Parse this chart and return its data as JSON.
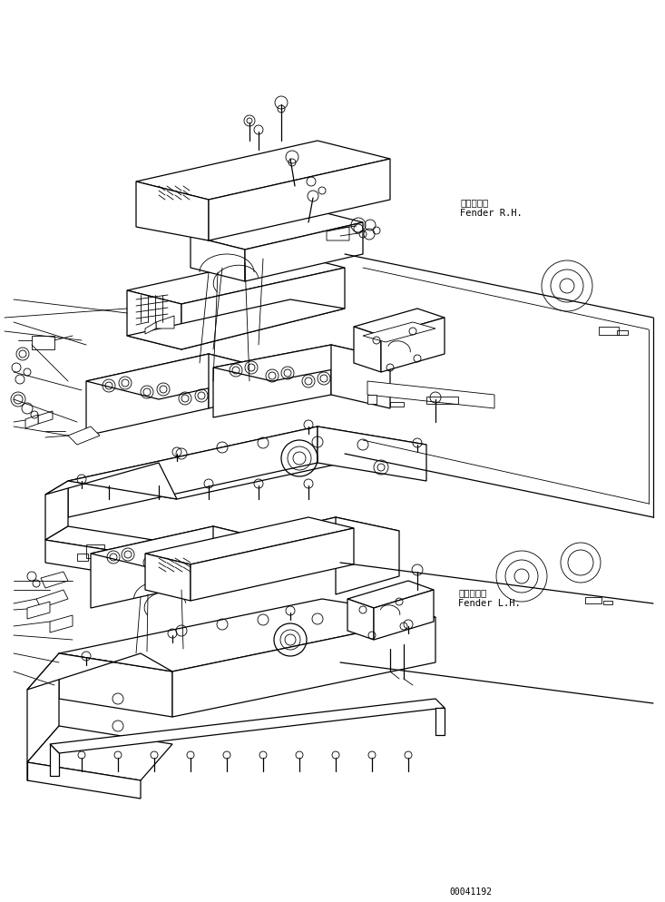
{
  "bg_color": "#ffffff",
  "line_color": "#000000",
  "fig_width": 7.33,
  "fig_height": 9.94,
  "dpi": 100,
  "label_rh_jp": "フェンダ右",
  "label_rh_en": "Fender R.H.",
  "label_lh_jp": "フェンダ左",
  "label_lh_en": "Fender L.H.",
  "part_number": "00041192",
  "font_size_label": 7.5,
  "font_size_part": 7
}
